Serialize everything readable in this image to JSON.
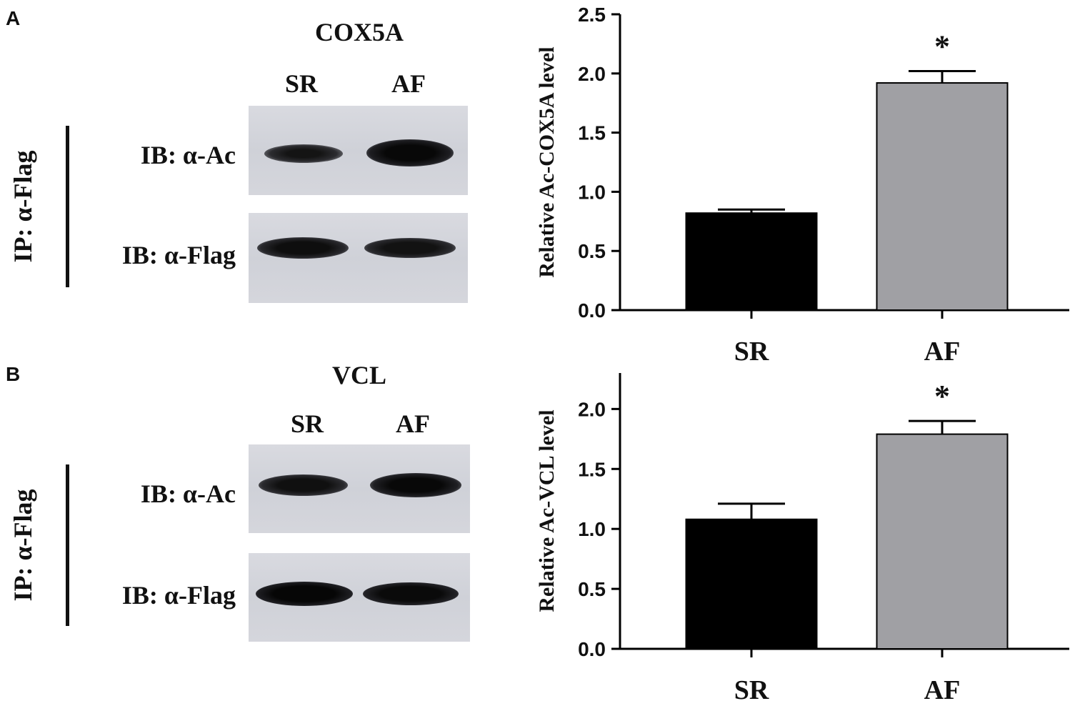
{
  "panels": [
    {
      "letter": "A",
      "protein": "COX5A",
      "lanes": [
        "SR",
        "AF"
      ],
      "ip_label": "IP: α-Flag",
      "blots": [
        {
          "label": "IB: α-Ac",
          "band_intensity": [
            0.75,
            1.0
          ]
        },
        {
          "label": "IB: α-Flag",
          "band_intensity": [
            0.95,
            0.9
          ]
        }
      ]
    },
    {
      "letter": "B",
      "protein": "VCL",
      "lanes": [
        "SR",
        "AF"
      ],
      "ip_label": "IP: α-Flag",
      "blots": [
        {
          "label": "IB: α-Ac",
          "band_intensity": [
            0.85,
            1.0
          ]
        },
        {
          "label": "IB: α-Flag",
          "band_intensity": [
            1.0,
            0.95
          ]
        }
      ]
    }
  ],
  "chart_data": [
    {
      "type": "bar",
      "categories": [
        "SR",
        "AF"
      ],
      "values": [
        0.82,
        1.92
      ],
      "errors": [
        0.03,
        0.1
      ],
      "bar_colors": [
        "#000000",
        "#a0a0a4"
      ],
      "significance": [
        "",
        "*"
      ],
      "ylabel": "Relative Ac-COX5A level",
      "ylim": [
        0,
        2.5
      ],
      "yticks": [
        "0.0",
        "0.5",
        "1.0",
        "1.5",
        "2.0",
        "2.5"
      ]
    },
    {
      "type": "bar",
      "categories": [
        "SR",
        "AF"
      ],
      "values": [
        1.08,
        1.79
      ],
      "errors": [
        0.13,
        0.11
      ],
      "bar_colors": [
        "#000000",
        "#a0a0a4"
      ],
      "significance": [
        "",
        "*"
      ],
      "ylabel": "Relative Ac-VCL level",
      "ylim": [
        0,
        2.3
      ],
      "yticks": [
        "0.0",
        "0.5",
        "1.0",
        "1.5",
        "2.0"
      ]
    }
  ]
}
